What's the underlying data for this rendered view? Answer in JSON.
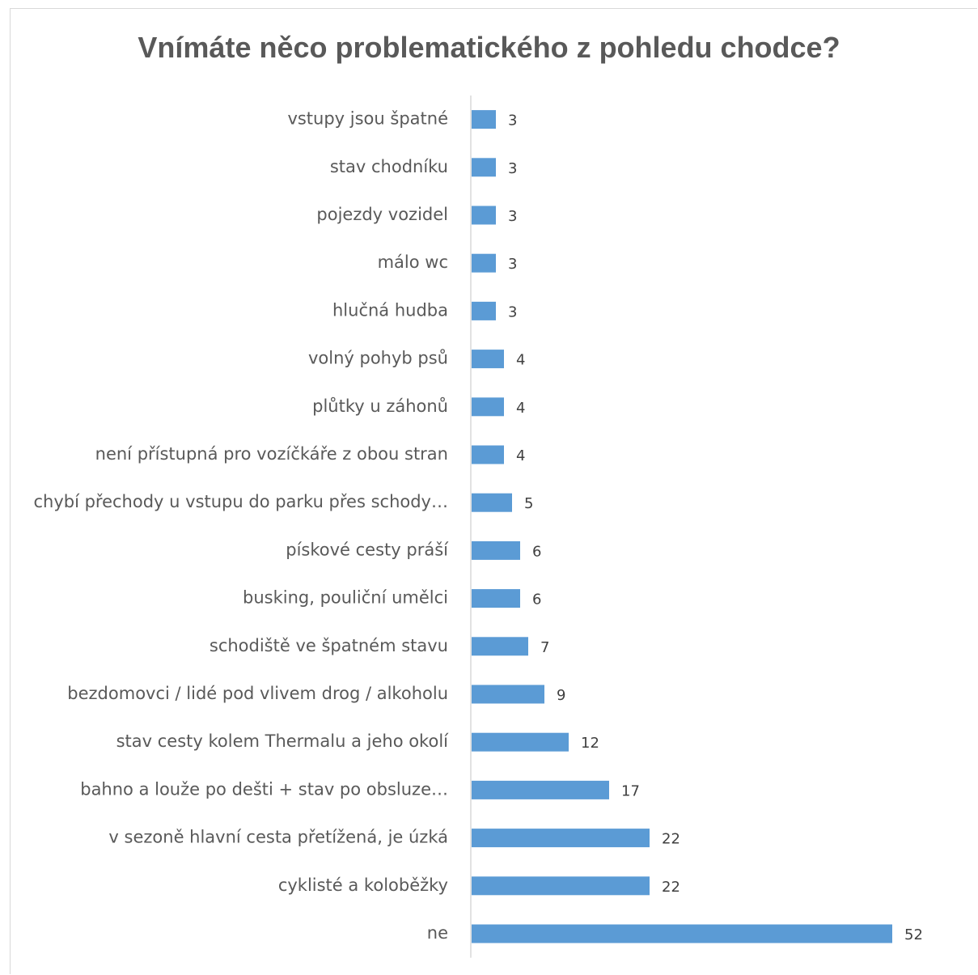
{
  "chart_data": {
    "type": "bar",
    "orientation": "horizontal",
    "title": "Vnímáte něco problematického z pohledu chodce?",
    "xlabel": "",
    "ylabel": "",
    "xlim": [
      0,
      52
    ],
    "grid": false,
    "legend": "none",
    "bar_color": "#5b9bd5",
    "data_labels": true,
    "categories": [
      "vstupy jsou špatné",
      "stav chodníku",
      "pojezdy vozidel",
      "málo wc",
      "hlučná hudba",
      "volný pohyb psů",
      "plůtky u záhonů",
      "není přístupná pro vozíčkáře z obou stran",
      "chybí přechody u vstupu do parku přes schody…",
      "pískové cesty práší",
      "busking, pouliční umělci",
      "schodiště ve špatném stavu",
      "bezdomovci / lidé pod vlivem drog / alkoholu",
      "stav cesty kolem Thermalu a jeho okolí",
      "bahno a louže po dešti + stav po obsluze…",
      "v sezoně hlavní cesta přetížená, je úzká",
      "cyklisté a koloběžky",
      "ne"
    ],
    "values": [
      3,
      3,
      3,
      3,
      3,
      4,
      4,
      4,
      5,
      6,
      6,
      7,
      9,
      12,
      17,
      22,
      22,
      52
    ]
  }
}
